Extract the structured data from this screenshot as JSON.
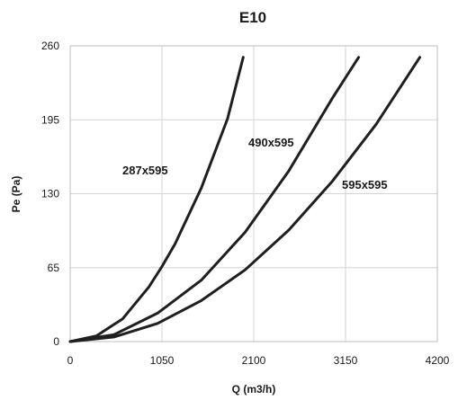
{
  "chart_data": {
    "type": "line",
    "title": "E10",
    "xlabel": "Q (m3/h)",
    "ylabel": "Pe (Pa)",
    "xlim": [
      0,
      4200
    ],
    "ylim": [
      0,
      260
    ],
    "xticks": [
      0,
      1050,
      2100,
      3150,
      4200
    ],
    "yticks": [
      0,
      65,
      130,
      195,
      260
    ],
    "grid": true,
    "line_color": "#1f1f1f",
    "series": [
      {
        "name": "287x595",
        "x": [
          0,
          300,
          600,
          900,
          1050,
          1200,
          1500,
          1800,
          1980
        ],
        "y": [
          0,
          5,
          20,
          48,
          66,
          86,
          135,
          196,
          250
        ]
      },
      {
        "name": "490x595",
        "x": [
          0,
          500,
          1000,
          1500,
          2000,
          2500,
          3000,
          3300
        ],
        "y": [
          0,
          6,
          25,
          54,
          96,
          150,
          214,
          250
        ]
      },
      {
        "name": "595x595",
        "x": [
          0,
          500,
          1000,
          1500,
          2000,
          2500,
          3000,
          3500,
          4000
        ],
        "y": [
          0,
          4,
          16,
          36,
          63,
          98,
          141,
          191,
          250
        ]
      }
    ]
  }
}
